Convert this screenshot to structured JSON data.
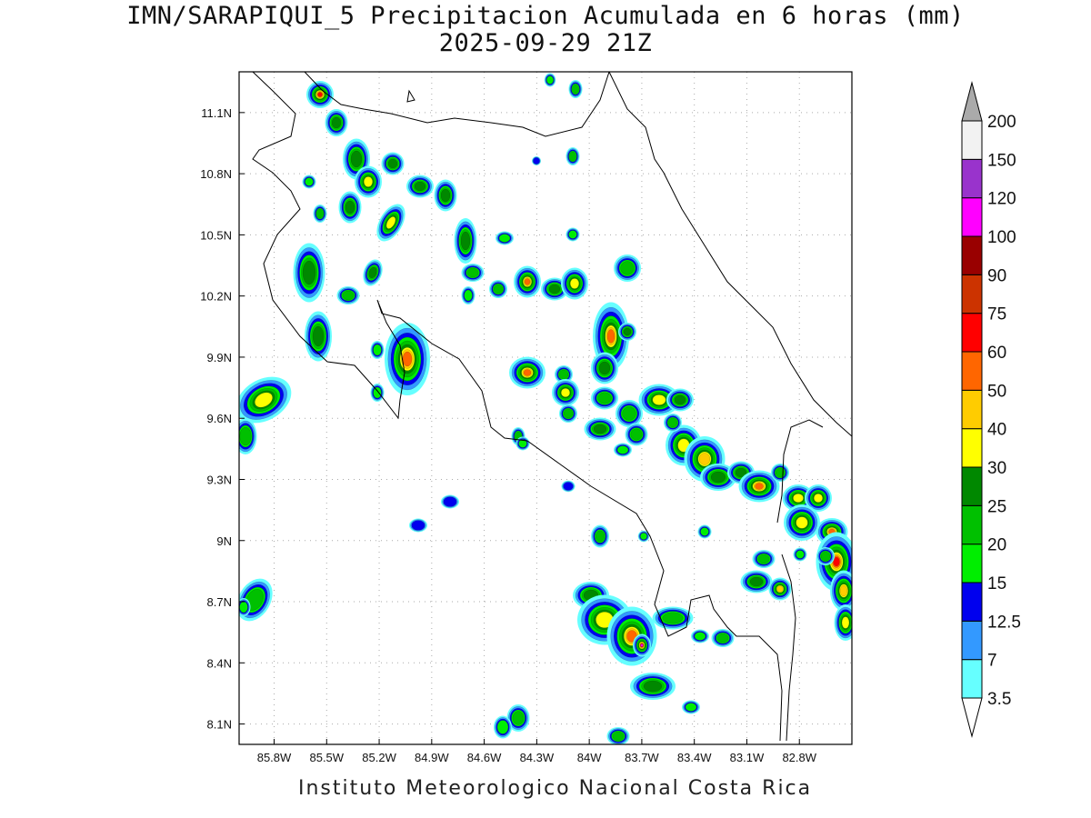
{
  "title": {
    "line1": "IMN/SARAPIQUI_5 Precipitacion Acumulada en 6 horas (mm)",
    "line2": "2025-09-29 21Z"
  },
  "footer": "Instituto Meteorologico Nacional Costa Rica",
  "map": {
    "lon_range": [
      -86.0,
      -82.5
    ],
    "lat_range": [
      8.0,
      11.3
    ],
    "lon_ticks": [
      "85.8W",
      "85.5W",
      "85.2W",
      "84.9W",
      "84.6W",
      "84.3W",
      "84W",
      "83.7W",
      "83.4W",
      "83.1W",
      "82.8W"
    ],
    "lat_ticks": [
      "11.1N",
      "10.8N",
      "10.5N",
      "10.2N",
      "9.9N",
      "9.6N",
      "9.3N",
      "9N",
      "8.7N",
      "8.4N",
      "8.1N"
    ],
    "grid": true
  },
  "colorbar": {
    "labels": [
      "3.5",
      "7",
      "12.5",
      "15",
      "20",
      "25",
      "30",
      "40",
      "50",
      "60",
      "75",
      "90",
      "100",
      "120",
      "150",
      "200"
    ],
    "colors": [
      "#66ffff",
      "#3399ff",
      "#0000ee",
      "#00ee00",
      "#00c000",
      "#008800",
      "#ffff00",
      "#ffcc00",
      "#ff6600",
      "#ff0000",
      "#cc3300",
      "#990000",
      "#ff00ff",
      "#9933cc",
      "#f2f2f2",
      "#aaaaaa"
    ]
  }
}
